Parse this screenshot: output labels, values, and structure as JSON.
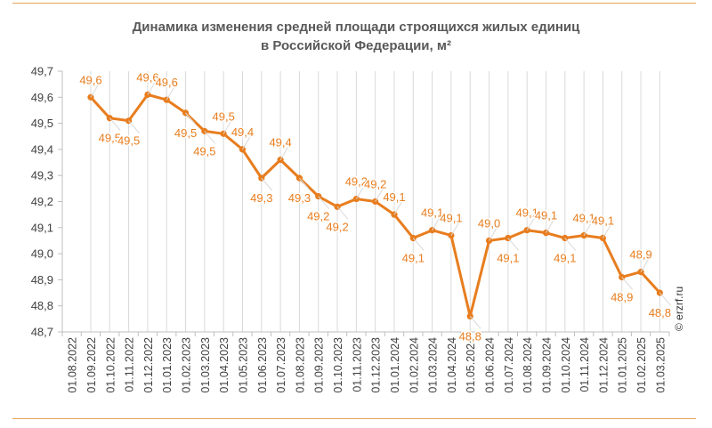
{
  "chart_data": {
    "type": "line",
    "title_line1": "Динамика изменения средней площади строящихся жилых единиц",
    "title_line2": "в Российской Федерации, м²",
    "ylim": [
      48.7,
      49.7
    ],
    "yticks": [
      "49,7",
      "49,6",
      "49,5",
      "49,4",
      "49,3",
      "49,2",
      "49,1",
      "49,0",
      "48,9",
      "48,8",
      "48,7"
    ],
    "ytick_values": [
      49.7,
      49.6,
      49.5,
      49.4,
      49.3,
      49.2,
      49.1,
      49.0,
      48.9,
      48.8,
      48.7
    ],
    "categories": [
      "01.08.2022",
      "01.09.2022",
      "01.10.2022",
      "01.11.2022",
      "01.12.2022",
      "01.01.2023",
      "01.02.2023",
      "01.03.2023",
      "01.04.2023",
      "01.05.2023",
      "01.06.2023",
      "01.07.2023",
      "01.08.2023",
      "01.09.2023",
      "01.10.2023",
      "01.11.2023",
      "01.12.2023",
      "01.01.2024",
      "01.02.2024",
      "01.03.2024",
      "01.04.2024",
      "01.05.2024",
      "01.06.2024",
      "01.07.2024",
      "01.08.2024",
      "01.09.2024",
      "01.10.2024",
      "01.11.2024",
      "01.12.2024",
      "01.01.2025",
      "01.02.2025",
      "01.03.2025"
    ],
    "values": [
      null,
      49.6,
      49.52,
      49.51,
      49.61,
      49.59,
      49.54,
      49.47,
      49.46,
      49.4,
      49.29,
      49.36,
      49.29,
      49.22,
      49.18,
      49.21,
      49.2,
      49.15,
      49.06,
      49.09,
      49.07,
      48.76,
      49.05,
      49.06,
      49.09,
      49.08,
      49.06,
      49.07,
      49.06,
      48.91,
      48.93,
      48.85
    ],
    "labels": [
      "",
      "49,6",
      "49,5",
      "49,5",
      "49,6",
      "49,6",
      "49,5",
      "49,5",
      "49,5",
      "49,4",
      "49,3",
      "49,4",
      "49,3",
      "49,2",
      "49,2",
      "49,2",
      "49,2",
      "49,1",
      "49,1",
      "49,1",
      "49,1",
      "48,8",
      "49,0",
      "49,1",
      "49,1",
      "49,1",
      "49,1",
      "49,1",
      "49,1",
      "48,9",
      "48,9",
      "48,8"
    ],
    "label_positions": [
      "",
      "above",
      "below",
      "below",
      "above",
      "above",
      "below",
      "below",
      "above",
      "above",
      "below",
      "above",
      "below",
      "below",
      "below",
      "above",
      "above",
      "above",
      "below",
      "above",
      "above",
      "below",
      "above",
      "below",
      "above",
      "above",
      "below",
      "above",
      "above",
      "below",
      "above",
      "below"
    ],
    "grid": true,
    "colors": {
      "line": "#e87d1e",
      "label": "#e87d1e",
      "grid": "#d9d9d9",
      "axis": "#bfbfbf",
      "tick_text": "#404040",
      "frame": "#e8a35a"
    }
  },
  "watermark": "© erzrf.ru"
}
